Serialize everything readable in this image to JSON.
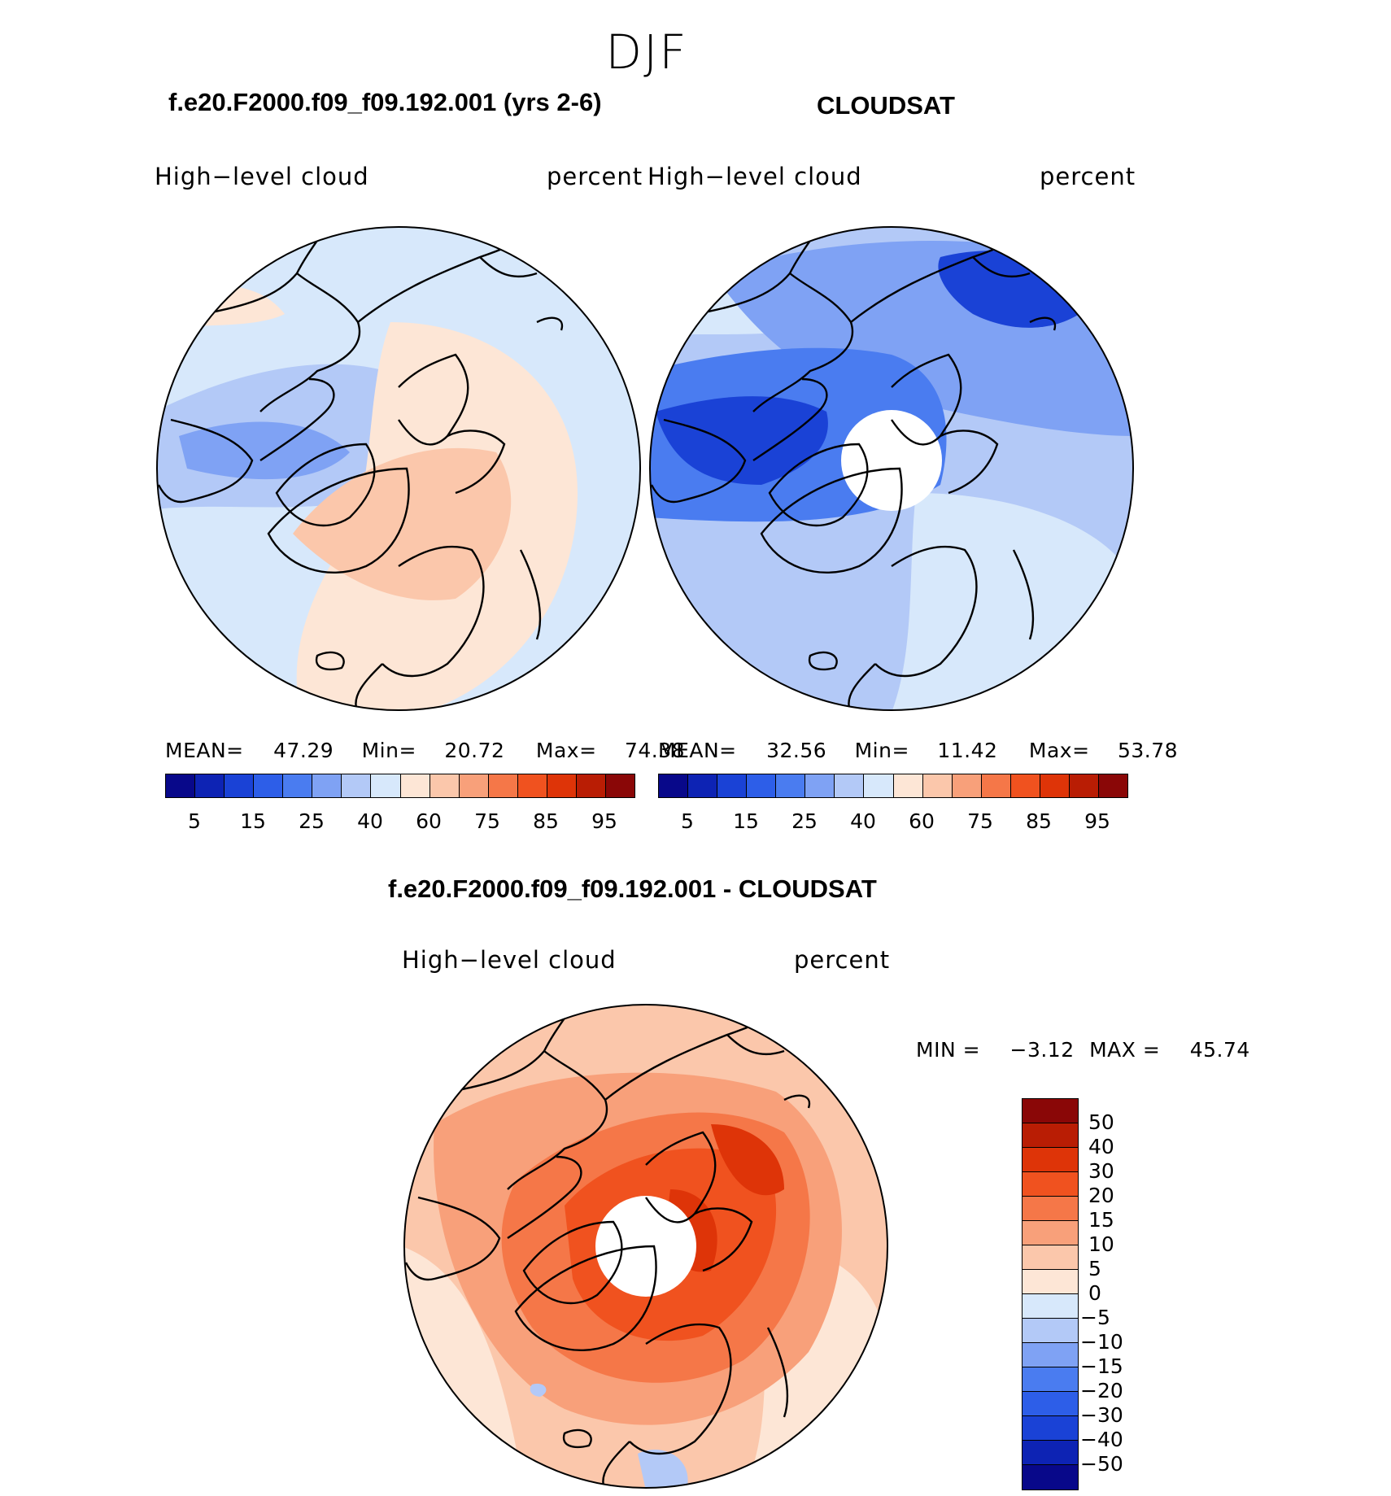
{
  "main_title": "DJF",
  "panel_left": {
    "title": "f.e20.F2000.f09_f09.192.001 (yrs 2-6)",
    "variable": "High−level  cloud",
    "units": "percent",
    "stats": {
      "mean_label": "MEAN=",
      "mean": "47.29",
      "min_label": "Min=",
      "min": "20.72",
      "max_label": "Max=",
      "max": "74.38"
    }
  },
  "panel_right": {
    "title": "CLOUDSAT",
    "variable": "High−level  cloud",
    "units": "percent",
    "stats": {
      "mean_label": "MEAN=",
      "mean": "32.56",
      "min_label": "Min=",
      "min": "11.42",
      "max_label": "Max=",
      "max": "53.78"
    }
  },
  "panel_diff": {
    "title": "f.e20.F2000.f09_f09.192.001 - CLOUDSAT",
    "variable": "High−level  cloud",
    "units": "percent",
    "minmax": {
      "min_label": "MIN =",
      "min": "−3.12",
      "max_label": "MAX =",
      "max": "45.74"
    }
  },
  "abs_colorbar": {
    "colors": [
      "#08088a",
      "#0d23b4",
      "#1a42d6",
      "#2d5ee8",
      "#4a7cf0",
      "#7fa2f4",
      "#b3c9f7",
      "#d7e8fb",
      "#fde6d6",
      "#fbc7ab",
      "#f8a07a",
      "#f57748",
      "#f0521f",
      "#de3408",
      "#b91d04",
      "#8a0707"
    ],
    "tick_labels": [
      "5",
      "15",
      "25",
      "40",
      "60",
      "75",
      "85",
      "95"
    ]
  },
  "diff_colorbar": {
    "colors_top_to_bottom": [
      "#8a0707",
      "#b91d04",
      "#de3408",
      "#f0521f",
      "#f57748",
      "#f8a07a",
      "#fbc7ab",
      "#fde6d6",
      "#d7e8fb",
      "#b3c9f7",
      "#7fa2f4",
      "#4a7cf0",
      "#2d5ee8",
      "#1a42d6",
      "#0d23b4",
      "#08088a"
    ],
    "tick_labels_top_to_bottom": [
      "50",
      "40",
      "30",
      "20",
      "15",
      "10",
      "5",
      "0",
      "−5",
      "−10",
      "−15",
      "−20",
      "−30",
      "−40",
      "−50"
    ]
  },
  "map_colors": {
    "model": {
      "base": "#d7e8fb",
      "warm": "#fde6d6",
      "warm2": "#fbc7ab",
      "cool": "#b3c9f7",
      "cool2": "#7fa2f4",
      "cool3": "#4a7cf0"
    },
    "obs": {
      "base": "#b3c9f7",
      "light": "#d7e8fb",
      "mid": "#7fa2f4",
      "dark": "#4a7cf0",
      "darker": "#1a42d6"
    },
    "diff": {
      "base": "#fbc7ab",
      "light": "#fde6d6",
      "mid": "#f8a07a",
      "strong": "#f57748",
      "stronger": "#f0521f",
      "strongest": "#de3408",
      "cool": "#b3c9f7"
    }
  }
}
